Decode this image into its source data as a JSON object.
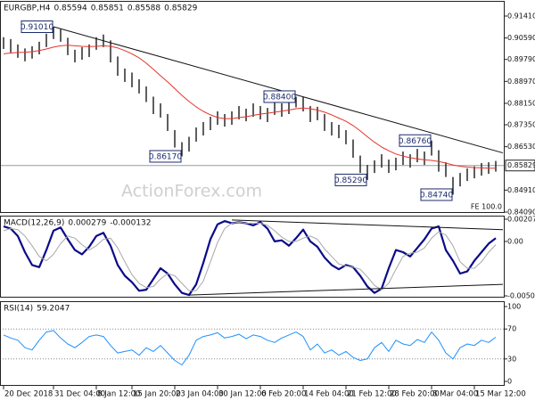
{
  "chart_data": [
    {
      "type": "hlbar",
      "title": "EURGBP,H4",
      "header_values": [
        0.85594,
        0.85851,
        0.85588,
        0.85829
      ],
      "xlim": [
        -0.5,
        70.25
      ],
      "ylim": [
        0.8409,
        0.91942
      ],
      "yticks": [
        {
          "value": 0.9141,
          "label": "0.91410"
        },
        {
          "value": 0.9059,
          "label": "0.90590"
        },
        {
          "value": 0.8979,
          "label": "0.89790"
        },
        {
          "value": 0.8897,
          "label": "0.88970"
        },
        {
          "value": 0.8815,
          "label": "0.88150"
        },
        {
          "value": 0.8735,
          "label": "0.87350"
        },
        {
          "value": 0.8653,
          "label": "0.86530"
        },
        {
          "value": 0.8491,
          "label": "0.84910"
        },
        {
          "value": 0.8409,
          "label": "0.84090"
        }
      ],
      "current_price": 0.85829,
      "series": [
        {
          "color": "#1a1a1a",
          "high": [
            0.9062,
            0.9055,
            0.9035,
            0.902,
            0.9028,
            0.9045,
            0.9075,
            0.9101,
            0.9092,
            0.906,
            0.9015,
            0.9025,
            0.9035,
            0.9062,
            0.9072,
            0.905,
            0.899,
            0.8945,
            0.893,
            0.8905,
            0.8878,
            0.884,
            0.8815,
            0.8775,
            0.8715,
            0.867,
            0.869,
            0.8725,
            0.8745,
            0.8765,
            0.8785,
            0.8775,
            0.8785,
            0.8805,
            0.8795,
            0.8815,
            0.8805,
            0.8798,
            0.8822,
            0.8815,
            0.8825,
            0.884,
            0.8838,
            0.8805,
            0.8802,
            0.8775,
            0.8745,
            0.8735,
            0.8715,
            0.868,
            0.862,
            0.8585,
            0.8602,
            0.8625,
            0.8605,
            0.8612,
            0.8635,
            0.8625,
            0.8645,
            0.8635,
            0.8676,
            0.864,
            0.8595,
            0.854,
            0.8555,
            0.8572,
            0.858,
            0.8592,
            0.8595,
            0.86
          ],
          "low": [
            0.9018,
            0.9005,
            0.8985,
            0.8972,
            0.8982,
            0.8998,
            0.9025,
            0.9055,
            0.9045,
            0.8995,
            0.8968,
            0.8978,
            0.8988,
            0.9015,
            0.9025,
            0.8968,
            0.8918,
            0.8895,
            0.8875,
            0.8852,
            0.882,
            0.8775,
            0.8762,
            0.8712,
            0.865,
            0.8617,
            0.8635,
            0.8672,
            0.8695,
            0.8715,
            0.8735,
            0.8728,
            0.8735,
            0.8755,
            0.8748,
            0.8765,
            0.8755,
            0.8745,
            0.8772,
            0.8765,
            0.8775,
            0.88,
            0.8785,
            0.8745,
            0.8752,
            0.8712,
            0.8695,
            0.8685,
            0.8662,
            0.8612,
            0.8555,
            0.8529,
            0.8555,
            0.8575,
            0.8555,
            0.8565,
            0.8585,
            0.8575,
            0.8595,
            0.8585,
            0.862,
            0.856,
            0.854,
            0.8474,
            0.8505,
            0.8525,
            0.8535,
            0.8545,
            0.8552,
            0.856
          ]
        },
        {
          "color": "#e8322b",
          "width": 1,
          "values": [
            0.9,
            0.9003,
            0.9005,
            0.9006,
            0.9008,
            0.9012,
            0.9018,
            0.9025,
            0.903,
            0.9032,
            0.903,
            0.9028,
            0.9027,
            0.9028,
            0.903,
            0.9028,
            0.9022,
            0.9012,
            0.9,
            0.8985,
            0.8965,
            0.8942,
            0.8918,
            0.8895,
            0.887,
            0.8845,
            0.8822,
            0.8802,
            0.8785,
            0.8772,
            0.8762,
            0.8758,
            0.8758,
            0.8762,
            0.8765,
            0.877,
            0.8775,
            0.8778,
            0.8782,
            0.8786,
            0.879,
            0.8795,
            0.8798,
            0.8795,
            0.879,
            0.8782,
            0.8772,
            0.876,
            0.8748,
            0.8732,
            0.8712,
            0.869,
            0.867,
            0.8652,
            0.8638,
            0.8626,
            0.8618,
            0.8612,
            0.8608,
            0.8604,
            0.8602,
            0.8598,
            0.8592,
            0.8585,
            0.858,
            0.8577,
            0.8575,
            0.8574,
            0.8573,
            0.8573
          ]
        }
      ],
      "trendlines": [
        {
          "color": "#111111",
          "x": [
            7,
            70
          ],
          "y": [
            0.9101,
            0.863
          ]
        }
      ],
      "annotations": [
        {
          "x": 7,
          "value": 0.9101,
          "label": "0.91010"
        },
        {
          "x": 25,
          "value": 0.8617,
          "label": "0.86170"
        },
        {
          "x": 41,
          "value": 0.884,
          "label": "0.88400"
        },
        {
          "x": 51,
          "value": 0.8529,
          "label": "0.85290"
        },
        {
          "x": 60,
          "value": 0.8676,
          "label": "0.86760"
        },
        {
          "x": 63,
          "value": 0.8474,
          "label": "0.84740"
        }
      ],
      "watermark": "ActionForex.com",
      "note": "FE 100.0"
    },
    {
      "type": "line",
      "title": "MACD(12,26,9)",
      "header_values": [
        0.000279,
        -0.000132
      ],
      "xlim": [
        -0.5,
        70.25
      ],
      "ylim": [
        -0.005074,
        0.002073
      ],
      "yticks": [
        0.002073,
        {
          "value": 0,
          "label": "0.00"
        },
        -0.005074
      ],
      "series": [
        {
          "color": "#0b0b8a",
          "width": 2.2,
          "values": [
            0.0014,
            0.0012,
            0.0005,
            -0.001,
            -0.0022,
            -0.0024,
            -0.0008,
            0.001,
            0.0013,
            0.0002,
            -0.0008,
            -0.0012,
            -0.0005,
            0.0005,
            0.0008,
            -0.0004,
            -0.0022,
            -0.0032,
            -0.0038,
            -0.0046,
            -0.0045,
            -0.0035,
            -0.0025,
            -0.003,
            -0.004,
            -0.0048,
            -0.005,
            -0.004,
            -0.002,
            0.0002,
            0.0016,
            0.0019,
            0.0017,
            0.0018,
            0.0017,
            0.0015,
            0.0018,
            0.0012,
            0,
            0.0001,
            -0.0004,
            0.0003,
            0.0011,
            0,
            -0.0005,
            -0.0015,
            -0.0022,
            -0.0026,
            -0.0022,
            -0.0024,
            -0.0032,
            -0.0042,
            -0.0048,
            -0.0044,
            -0.0025,
            -0.0008,
            -0.001,
            -0.0014,
            -0.0006,
            0.0002,
            0.0012,
            0.0014,
            -0.0008,
            -0.0018,
            -0.003,
            -0.0028,
            -0.0018,
            -0.001,
            -0.0002,
            0.0003
          ]
        },
        {
          "color": "#a8a8a8",
          "width": 1,
          "values": [
            0.001,
            0.0012,
            0.0011,
            0.0005,
            -0.0004,
            -0.0014,
            -0.0018,
            -0.0012,
            -0.0002,
            0.0005,
            0.0003,
            -0.0003,
            -0.0008,
            -0.0004,
            0.0002,
            0.0003,
            -0.0006,
            -0.0019,
            -0.0031,
            -0.0039,
            -0.0043,
            -0.0042,
            -0.0035,
            -0.003,
            -0.0032,
            -0.0039,
            -0.0046,
            -0.0046,
            -0.0037,
            -0.0019,
            -0.0001,
            0.0012,
            0.0017,
            0.0018,
            0.0017,
            0.0017,
            0.0017,
            0.0015,
            0.001,
            0.0004,
            0,
            0,
            0.0003,
            0.0005,
            0.0002,
            -0.0007,
            -0.0014,
            -0.0021,
            -0.0023,
            -0.0024,
            -0.0026,
            -0.0033,
            -0.0041,
            -0.0045,
            -0.0039,
            -0.0026,
            -0.0014,
            -0.0011,
            -0.001,
            -0.0006,
            0.0003,
            0.0009,
            0.0006,
            -0.0004,
            -0.0019,
            -0.0025,
            -0.0025,
            -0.0019,
            -0.001,
            -0.0003
          ]
        }
      ],
      "trendlines": [
        {
          "color": "#111111",
          "x": [
            32,
            70
          ],
          "y": [
            0.002,
            0.0011
          ]
        },
        {
          "color": "#111111",
          "x": [
            26,
            70
          ],
          "y": [
            -0.005,
            -0.004
          ]
        }
      ]
    },
    {
      "type": "line",
      "title": "RSI(14)",
      "header_values": [
        59.2047
      ],
      "xlim": [
        -0.5,
        70.25
      ],
      "ylim": [
        0,
        100
      ],
      "yticks": [
        100,
        70,
        30,
        0
      ],
      "levels": [
        70,
        30
      ],
      "series": [
        {
          "color": "#1e90ff",
          "width": 1,
          "values": [
            62,
            58,
            55,
            45,
            42,
            55,
            66,
            68,
            58,
            50,
            45,
            52,
            60,
            62,
            60,
            48,
            38,
            40,
            42,
            35,
            45,
            40,
            48,
            38,
            28,
            22,
            35,
            55,
            60,
            62,
            65,
            58,
            60,
            63,
            57,
            62,
            60,
            55,
            52,
            58,
            62,
            66,
            60,
            42,
            50,
            38,
            42,
            35,
            40,
            32,
            28,
            30,
            45,
            52,
            40,
            55,
            50,
            48,
            56,
            52,
            66,
            55,
            38,
            30,
            45,
            50,
            48,
            55,
            52,
            59
          ]
        }
      ],
      "xticks": [
        {
          "value": 0,
          "label": "20 Dec 2018"
        },
        {
          "value": 7,
          "label": "31 Dec 04:00"
        },
        {
          "value": 13,
          "label": "8 Jan 12:00"
        },
        {
          "value": 18,
          "label": "15 Jan 20:00"
        },
        {
          "value": 24,
          "label": "23 Jan 04:00"
        },
        {
          "value": 30,
          "label": "30 Jan 12:00"
        },
        {
          "value": 36,
          "label": "6 Feb 20:00"
        },
        {
          "value": 42,
          "label": "14 Feb 04:00"
        },
        {
          "value": 48,
          "label": "21 Feb 12:00"
        },
        {
          "value": 54,
          "label": "28 Feb 20:00"
        },
        {
          "value": 60,
          "label": "8 Mar 04:00"
        },
        {
          "value": 66,
          "label": "15 Mar 12:00"
        }
      ]
    }
  ]
}
